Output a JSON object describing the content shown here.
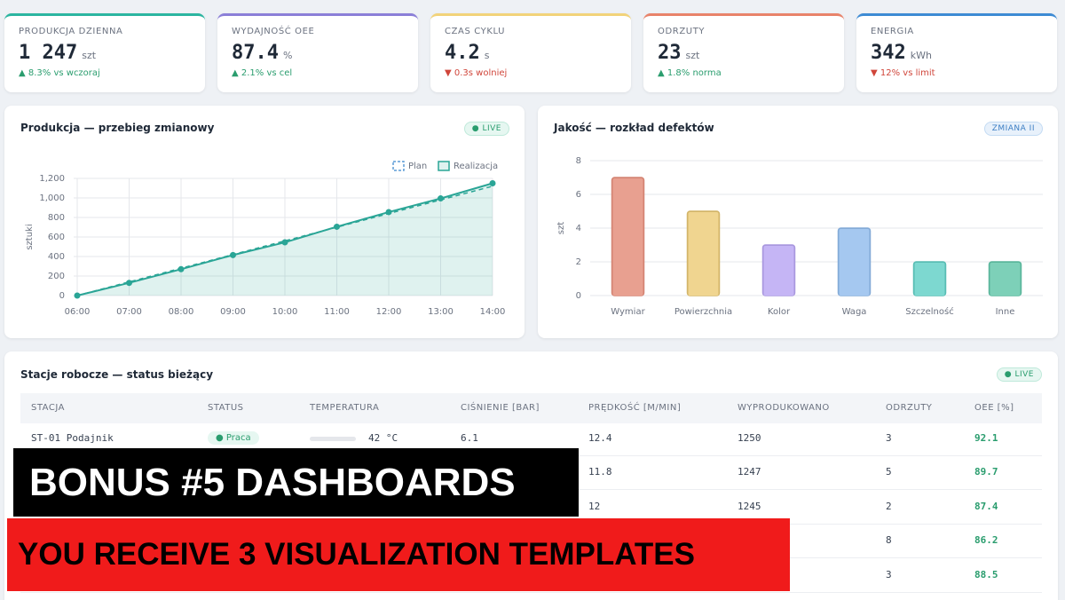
{
  "kpis": [
    {
      "label": "PRODUKCJA DZIENNA",
      "value": "1 247",
      "unit": "szt",
      "delta": "▲ 8.3% vs wczoraj",
      "color": "#2bb5a0",
      "delta_color": "#2a9d6e"
    },
    {
      "label": "WYDAJNOŚĆ OEE",
      "value": "87.4",
      "unit": "%",
      "delta": "▲ 2.1% vs cel",
      "color": "#8b7fd8",
      "delta_color": "#2a9d6e"
    },
    {
      "label": "CZAS CYKLU",
      "value": "4.2",
      "unit": "s",
      "delta": "▼ 0.3s wolniej",
      "color": "#f2d37a",
      "delta_color": "#d0453a"
    },
    {
      "label": "ODRZUTY",
      "value": "23",
      "unit": "szt",
      "delta": "▲ 1.8% norma",
      "color": "#e8836a",
      "delta_color": "#2a9d6e"
    },
    {
      "label": "ENERGIA",
      "value": "342",
      "unit": "kWh",
      "delta": "▼ 12% vs limit",
      "color": "#3d8bd4",
      "delta_color": "#d0453a"
    }
  ],
  "chart_data": [
    {
      "type": "line",
      "title": "Produkcja — przebieg zmianowy",
      "badge": "LIVE",
      "y_label": "sztuki",
      "x": [
        "06:00",
        "07:00",
        "08:00",
        "09:00",
        "10:00",
        "11:00",
        "12:00",
        "13:00",
        "14:00"
      ],
      "series": [
        {
          "name": "Plan",
          "color": "#2aa596",
          "dashed": true,
          "values": [
            0,
            140,
            280,
            420,
            560,
            700,
            840,
            980,
            1120
          ]
        },
        {
          "name": "Realizacja",
          "color": "#2aa596",
          "fill": true,
          "values": [
            0,
            130,
            270,
            415,
            545,
            705,
            855,
            995,
            1150
          ]
        }
      ],
      "ylim": [
        0,
        1200
      ],
      "yticks": [
        0,
        200,
        400,
        600,
        800,
        {
          "value": 1000,
          "label": "1,000"
        },
        {
          "value": 1200,
          "label": "1,200"
        }
      ],
      "grid": true
    },
    {
      "type": "bar",
      "title": "Jakość — rozkład defektów",
      "badge": "ZMIANA II",
      "y_label": "szt",
      "categories": [
        "Wymiar",
        "Powierzchnia",
        "Kolor",
        "Waga",
        "Szczelność",
        "Inne"
      ],
      "values": [
        7,
        5,
        3,
        4,
        2,
        2
      ],
      "colors": [
        "#e8a090",
        "#f0d590",
        "#c5b5f5",
        "#a5c8f0",
        "#7dd8d0",
        "#7dd0b8"
      ],
      "ylim": [
        0,
        8
      ],
      "yticks": [
        0,
        2,
        4,
        6,
        8
      ],
      "grid": true
    }
  ],
  "table": {
    "title": "Stacje robocze — status bieżący",
    "badge": "LIVE",
    "columns": [
      "STACJA",
      "STATUS",
      "TEMPERATURA",
      "CIŚNIENIE [BAR]",
      "PRĘDKOŚĆ [M/MIN]",
      "WYPRODUKOWANO",
      "ODRZUTY",
      "OEE [%]"
    ],
    "rows": [
      [
        "ST-01 Podajnik",
        "Praca",
        "42 °C",
        "6.1",
        "12.4",
        "1250",
        "3",
        "92.1"
      ],
      [
        null,
        null,
        null,
        null,
        "11.8",
        "1247",
        "5",
        "89.7"
      ],
      [
        null,
        null,
        null,
        null,
        "12",
        "1245",
        "2",
        "87.4"
      ],
      [
        null,
        null,
        null,
        null,
        null,
        null,
        "8",
        "86.2"
      ],
      [
        null,
        null,
        null,
        null,
        null,
        null,
        "3",
        "88.5"
      ]
    ]
  },
  "banners": [
    "BONUS #5 DASHBOARDS",
    "YOU RECEIVE 3 VISUALIZATION TEMPLATES"
  ]
}
